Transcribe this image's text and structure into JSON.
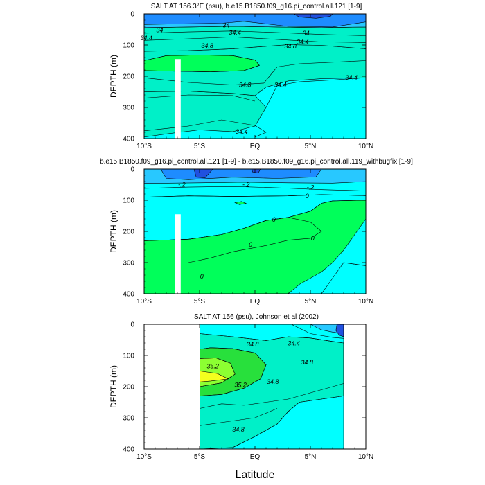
{
  "chart_data": [
    {
      "type": "contour",
      "title": "SALT AT 156.3°E (psu), b.e15.B1850.f09_g16.pi_control.all.121 [1-9]",
      "ylabel": "DEPTH (m)",
      "xlabel": "",
      "xlim": [
        -10,
        10
      ],
      "ylim": [
        400,
        0
      ],
      "x_ticks": [
        -10,
        -5,
        0,
        5,
        10
      ],
      "x_tick_labels": [
        "10°S",
        "5°S",
        "EQ",
        "5°N",
        "10°N"
      ],
      "y_ticks": [
        0,
        100,
        200,
        300,
        400
      ],
      "y_tick_labels": [
        "0",
        "100",
        "200",
        "300",
        "400"
      ],
      "contour_labels": [
        {
          "text": "34",
          "x": -8.6,
          "y": 58
        },
        {
          "text": "34.4",
          "x": -9.8,
          "y": 83
        },
        {
          "text": "34",
          "x": -2.6,
          "y": 42
        },
        {
          "text": "34.4",
          "x": -1.8,
          "y": 66
        },
        {
          "text": "34.8",
          "x": -4.3,
          "y": 108
        },
        {
          "text": "34",
          "x": 4.6,
          "y": 68
        },
        {
          "text": "34.4",
          "x": 4.3,
          "y": 96
        },
        {
          "text": "34.8",
          "x": 3.2,
          "y": 110
        },
        {
          "text": "34.8",
          "x": -0.9,
          "y": 233
        },
        {
          "text": "34.4",
          "x": 2.3,
          "y": 233
        },
        {
          "text": "34.4",
          "x": 8.7,
          "y": 210
        },
        {
          "text": "34.4",
          "x": -1.2,
          "y": 383
        }
      ],
      "missing_band": {
        "x": [
          -7.2,
          -6.7
        ],
        "y": [
          145,
          400
        ]
      }
    },
    {
      "type": "contour",
      "title": "b.e15.B1850.f09_g16.pi_control.all.121 [1-9] - b.e15.B1850.f09_g16.pi_control.all.119_withbugfix [1-9]",
      "ylabel": "DEPTH (m)",
      "xlabel": "",
      "xlim": [
        -10,
        10
      ],
      "ylim": [
        400,
        0
      ],
      "x_ticks": [
        -10,
        -5,
        0,
        5,
        10
      ],
      "x_tick_labels": [
        "10°S",
        "5°S",
        "EQ",
        "5°N",
        "10°N"
      ],
      "y_ticks": [
        0,
        100,
        200,
        300,
        400
      ],
      "y_tick_labels": [
        "0",
        "100",
        "200",
        "300",
        "400"
      ],
      "contour_labels": [
        {
          "text": "-.2",
          "x": -6.6,
          "y": 56
        },
        {
          "text": "-.2",
          "x": -0.8,
          "y": 56
        },
        {
          "text": "-.2",
          "x": 5.0,
          "y": 64
        },
        {
          "text": "0",
          "x": 4.7,
          "y": 92
        },
        {
          "text": "0",
          "x": 1.7,
          "y": 168
        },
        {
          "text": "0",
          "x": 5.2,
          "y": 228
        },
        {
          "text": "0",
          "x": -0.4,
          "y": 248
        },
        {
          "text": "0",
          "x": -4.8,
          "y": 350
        }
      ],
      "missing_band": {
        "x": [
          -7.2,
          -6.7
        ],
        "y": [
          145,
          400
        ]
      }
    },
    {
      "type": "contour",
      "title": "SALT AT 156 (psu), Johnson et al (2002)",
      "ylabel": "DEPTH (m)",
      "xlabel": "Latitude",
      "xlim": [
        -10,
        10
      ],
      "ylim": [
        400,
        0
      ],
      "x_ticks": [
        -10,
        -5,
        0,
        5,
        10
      ],
      "x_tick_labels": [
        "10°S",
        "5°S",
        "EQ",
        "5°N",
        "10°N"
      ],
      "y_ticks": [
        0,
        100,
        200,
        300,
        400
      ],
      "y_tick_labels": [
        "0",
        "100",
        "200",
        "300",
        "400"
      ],
      "data_extent_x": [
        -5,
        8
      ],
      "contour_labels": [
        {
          "text": "34.8",
          "x": -0.2,
          "y": 70
        },
        {
          "text": "34.4",
          "x": 3.5,
          "y": 67
        },
        {
          "text": "34.8",
          "x": 4.7,
          "y": 128
        },
        {
          "text": "35.2",
          "x": -3.8,
          "y": 140
        },
        {
          "text": "35.2",
          "x": -1.3,
          "y": 200
        },
        {
          "text": "34.8",
          "x": 1.6,
          "y": 190
        },
        {
          "text": "34.8",
          "x": -1.5,
          "y": 343
        }
      ]
    }
  ]
}
